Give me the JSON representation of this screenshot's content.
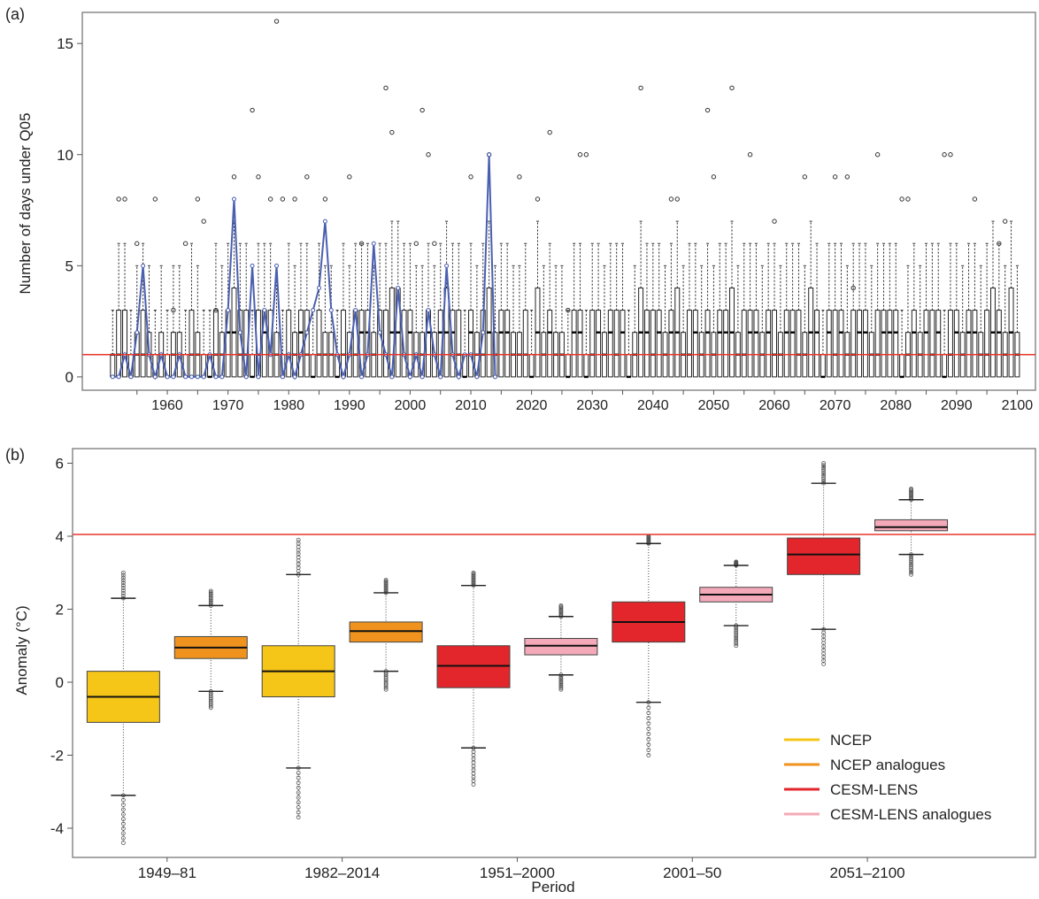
{
  "colors": {
    "ncep": "#f5c518",
    "ncep_analogues": "#f0921e",
    "cesm": "#e3262b",
    "cesm_analogues": "#f4a9b8",
    "threshold": "#e8372c",
    "observed": "#4a5fb0"
  },
  "chart_data": [
    {
      "panel": "(a)",
      "type": "boxplot",
      "ylabel": "Number of days under Q05",
      "ylim": [
        -0.6,
        16.4
      ],
      "yticks": [
        0,
        5,
        10,
        15
      ],
      "xlim": [
        1946,
        2103
      ],
      "xticks": [
        1960,
        1970,
        1980,
        1990,
        2000,
        2010,
        2020,
        2030,
        2040,
        2050,
        2060,
        2070,
        2080,
        2090,
        2100
      ],
      "year_start": 1951,
      "year_end": 2100,
      "threshold_y": 1,
      "threshold_color": "#e8372c",
      "box_summary": "Annual box plots for years 1951–2100 (medians mostly 0–2 days, upper quartiles 1–4 days)",
      "q3": [
        1,
        3,
        3,
        1,
        2,
        3,
        2,
        1,
        2,
        1,
        2,
        2,
        1,
        3,
        2,
        1,
        1,
        3,
        2,
        3,
        4,
        3,
        3,
        1,
        3,
        3,
        3,
        2,
        1,
        3,
        2,
        3,
        3,
        1,
        3,
        2,
        2,
        1,
        3,
        2,
        3,
        3,
        3,
        2,
        3,
        3,
        4,
        4,
        3,
        3,
        2,
        2,
        3,
        2,
        3,
        4,
        3,
        3,
        1,
        3,
        2,
        3,
        4,
        2,
        3,
        3,
        2,
        2,
        3,
        1,
        4,
        2,
        3,
        2,
        2,
        1,
        3,
        3,
        1,
        3,
        3,
        2,
        3,
        3,
        3,
        1,
        2,
        4,
        3,
        3,
        3,
        2,
        3,
        4,
        2,
        3,
        3,
        2,
        3,
        2,
        3,
        3,
        4,
        2,
        3,
        3,
        3,
        2,
        3,
        3,
        2,
        3,
        3,
        3,
        2,
        4,
        3,
        1,
        3,
        3,
        3,
        2,
        3,
        3,
        3,
        2,
        3,
        3,
        3,
        3,
        1,
        2,
        3,
        2,
        3,
        3,
        3,
        1,
        3,
        3,
        2,
        3,
        3,
        2,
        3,
        4,
        3,
        2,
        4,
        2
      ],
      "median": [
        1,
        1,
        1,
        0,
        1,
        1,
        1,
        0,
        1,
        0,
        1,
        1,
        0,
        1,
        1,
        0,
        0,
        1,
        1,
        2,
        2,
        1,
        1,
        0,
        1,
        2,
        1,
        1,
        0,
        1,
        1,
        2,
        1,
        0,
        1,
        1,
        1,
        0,
        1,
        1,
        1,
        2,
        2,
        1,
        2,
        1,
        2,
        2,
        1,
        2,
        1,
        1,
        2,
        1,
        2,
        2,
        2,
        1,
        0,
        2,
        1,
        1,
        2,
        1,
        2,
        2,
        1,
        1,
        1,
        0,
        2,
        1,
        2,
        1,
        1,
        0,
        2,
        2,
        0,
        1,
        2,
        1,
        2,
        1,
        2,
        0,
        1,
        2,
        2,
        1,
        2,
        1,
        2,
        2,
        1,
        1,
        2,
        1,
        2,
        1,
        2,
        2,
        2,
        1,
        1,
        2,
        2,
        1,
        2,
        1,
        1,
        2,
        2,
        1,
        1,
        2,
        2,
        0,
        2,
        1,
        2,
        1,
        1,
        2,
        2,
        1,
        1,
        2,
        2,
        2,
        0,
        1,
        2,
        1,
        2,
        1,
        2,
        0,
        1,
        2,
        1,
        2,
        2,
        1,
        1,
        2,
        2,
        1,
        2,
        1
      ],
      "whisker_hi": [
        3,
        6,
        6,
        3,
        5,
        6,
        5,
        3,
        5,
        3,
        5,
        5,
        3,
        6,
        5,
        3,
        3,
        6,
        5,
        6,
        7,
        6,
        6,
        3,
        6,
        6,
        6,
        5,
        3,
        6,
        5,
        6,
        6,
        3,
        6,
        5,
        5,
        3,
        6,
        5,
        6,
        6,
        6,
        5,
        6,
        6,
        7,
        7,
        6,
        6,
        5,
        5,
        6,
        5,
        6,
        7,
        6,
        6,
        3,
        6,
        5,
        6,
        7,
        5,
        6,
        6,
        5,
        5,
        6,
        3,
        7,
        5,
        6,
        5,
        5,
        3,
        6,
        6,
        3,
        6,
        6,
        5,
        6,
        6,
        6,
        3,
        5,
        7,
        6,
        6,
        6,
        5,
        6,
        7,
        5,
        6,
        6,
        5,
        6,
        5,
        6,
        6,
        7,
        5,
        6,
        6,
        6,
        5,
        6,
        6,
        5,
        6,
        6,
        6,
        5,
        7,
        6,
        3,
        6,
        6,
        6,
        5,
        6,
        6,
        6,
        5,
        6,
        6,
        6,
        6,
        3,
        5,
        6,
        5,
        6,
        6,
        6,
        3,
        6,
        6,
        5,
        6,
        6,
        5,
        6,
        7,
        6,
        5,
        7,
        5
      ],
      "outliers": [
        [
          1952,
          8
        ],
        [
          1953,
          8
        ],
        [
          1955,
          6
        ],
        [
          1958,
          8
        ],
        [
          1961,
          3
        ],
        [
          1963,
          6
        ],
        [
          1965,
          8
        ],
        [
          1966,
          7
        ],
        [
          1968,
          3
        ],
        [
          1971,
          9
        ],
        [
          1974,
          12
        ],
        [
          1975,
          9
        ],
        [
          1977,
          8
        ],
        [
          1978,
          16
        ],
        [
          1979,
          8
        ],
        [
          1981,
          8
        ],
        [
          1983,
          9
        ],
        [
          1986,
          8
        ],
        [
          1990,
          9
        ],
        [
          1992,
          6
        ],
        [
          1996,
          13
        ],
        [
          1997,
          11
        ],
        [
          2001,
          6
        ],
        [
          2002,
          12
        ],
        [
          2003,
          10
        ],
        [
          2004,
          6
        ],
        [
          2010,
          9
        ],
        [
          2013,
          10
        ],
        [
          2018,
          9
        ],
        [
          2021,
          8
        ],
        [
          2023,
          11
        ],
        [
          2026,
          3
        ],
        [
          2028,
          10
        ],
        [
          2029,
          10
        ],
        [
          2038,
          13
        ],
        [
          2043,
          8
        ],
        [
          2044,
          8
        ],
        [
          2049,
          12
        ],
        [
          2050,
          9
        ],
        [
          2053,
          13
        ],
        [
          2056,
          10
        ],
        [
          2060,
          7
        ],
        [
          2065,
          9
        ],
        [
          2070,
          9
        ],
        [
          2072,
          9
        ],
        [
          2073,
          4
        ],
        [
          2077,
          10
        ],
        [
          2081,
          8
        ],
        [
          2082,
          8
        ],
        [
          2088,
          10
        ],
        [
          2089,
          10
        ],
        [
          2093,
          8
        ],
        [
          2097,
          6
        ],
        [
          2098,
          7
        ]
      ],
      "observed_series": {
        "color": "#4a5fb0",
        "x": [
          1951,
          1952,
          1953,
          1954,
          1955,
          1956,
          1957,
          1958,
          1959,
          1960,
          1961,
          1962,
          1963,
          1964,
          1965,
          1966,
          1967,
          1968,
          1969,
          1970,
          1971,
          1972,
          1973,
          1974,
          1975,
          1976,
          1977,
          1978,
          1979,
          1980,
          1981,
          1982,
          1983,
          1984,
          1985,
          1986,
          1987,
          1988,
          1989,
          1990,
          1991,
          1992,
          1993,
          1994,
          1995,
          1996,
          1997,
          1998,
          1999,
          2000,
          2001,
          2002,
          2003,
          2004,
          2005,
          2006,
          2007,
          2008,
          2009,
          2010,
          2011,
          2012,
          2013,
          2014
        ],
        "y": [
          0,
          0,
          1,
          0,
          2,
          5,
          1,
          0,
          1,
          0,
          0,
          1,
          0,
          0,
          0,
          0,
          1,
          0,
          0,
          3,
          8,
          2,
          0,
          5,
          0,
          3,
          1,
          5,
          0,
          1,
          0,
          1,
          2,
          3,
          4,
          7,
          3,
          1,
          0,
          1,
          3,
          0,
          1,
          6,
          2,
          1,
          0,
          4,
          1,
          0,
          1,
          0,
          3,
          1,
          0,
          5,
          1,
          0,
          1,
          1,
          0,
          2,
          10,
          0
        ]
      }
    },
    {
      "panel": "(b)",
      "type": "boxplot",
      "ylabel": "Anomaly (°C)",
      "xlabel": "Period",
      "ylim": [
        -4.8,
        6.4
      ],
      "yticks": [
        -4,
        -2,
        0,
        2,
        4,
        6
      ],
      "threshold_y": 4.05,
      "threshold_color": "#e8372c",
      "legend_position": "bottom-right",
      "period_labels": [
        "1949–81",
        "1982–2014",
        "1951–2000",
        "2001–50",
        "2051–2100"
      ],
      "legend": [
        {
          "name": "NCEP",
          "color": "#f5c518"
        },
        {
          "name": "NCEP analogues",
          "color": "#f0921e"
        },
        {
          "name": "CESM-LENS",
          "color": "#e3262b"
        },
        {
          "name": "CESM-LENS analogues",
          "color": "#f4a9b8"
        }
      ],
      "boxes": [
        {
          "x": 1,
          "series": "NCEP",
          "color": "#f5c518",
          "whisker_low": -3.1,
          "q1": -1.1,
          "median": -0.4,
          "q3": 0.3,
          "whisker_high": 2.3,
          "min": -4.4,
          "max": 3.0
        },
        {
          "x": 2,
          "series": "NCEP analogues",
          "color": "#f0921e",
          "whisker_low": -0.25,
          "q1": 0.65,
          "median": 0.95,
          "q3": 1.25,
          "whisker_high": 2.1,
          "min": -0.7,
          "max": 2.5
        },
        {
          "x": 3,
          "series": "NCEP",
          "color": "#f5c518",
          "whisker_low": -2.35,
          "q1": -0.4,
          "median": 0.3,
          "q3": 1.0,
          "whisker_high": 2.95,
          "min": -3.7,
          "max": 3.9
        },
        {
          "x": 4,
          "series": "NCEP analogues",
          "color": "#f0921e",
          "whisker_low": 0.3,
          "q1": 1.1,
          "median": 1.4,
          "q3": 1.65,
          "whisker_high": 2.45,
          "min": -0.2,
          "max": 2.8
        },
        {
          "x": 5,
          "series": "CESM-LENS",
          "color": "#e3262b",
          "whisker_low": -1.8,
          "q1": -0.15,
          "median": 0.45,
          "q3": 1.0,
          "whisker_high": 2.65,
          "min": -2.8,
          "max": 3.0
        },
        {
          "x": 6,
          "series": "CESM-LENS analogues",
          "color": "#f4a9b8",
          "whisker_low": 0.2,
          "q1": 0.75,
          "median": 1.0,
          "q3": 1.2,
          "whisker_high": 1.8,
          "min": -0.2,
          "max": 2.1
        },
        {
          "x": 7,
          "series": "CESM-LENS",
          "color": "#e3262b",
          "whisker_low": -0.55,
          "q1": 1.1,
          "median": 1.65,
          "q3": 2.2,
          "whisker_high": 3.8,
          "min": -2.0,
          "max": 4.0
        },
        {
          "x": 8,
          "series": "CESM-LENS analogues",
          "color": "#f4a9b8",
          "whisker_low": 1.55,
          "q1": 2.2,
          "median": 2.4,
          "q3": 2.6,
          "whisker_high": 3.2,
          "min": 1.0,
          "max": 3.3
        },
        {
          "x": 9,
          "series": "CESM-LENS",
          "color": "#e3262b",
          "whisker_low": 1.45,
          "q1": 2.95,
          "median": 3.5,
          "q3": 3.95,
          "whisker_high": 5.45,
          "min": 0.5,
          "max": 6.0
        },
        {
          "x": 10,
          "series": "CESM-LENS analogues",
          "color": "#f4a9b8",
          "whisker_low": 3.5,
          "q1": 4.15,
          "median": 4.25,
          "q3": 4.45,
          "whisker_high": 5.0,
          "min": 2.95,
          "max": 5.3
        }
      ]
    }
  ]
}
